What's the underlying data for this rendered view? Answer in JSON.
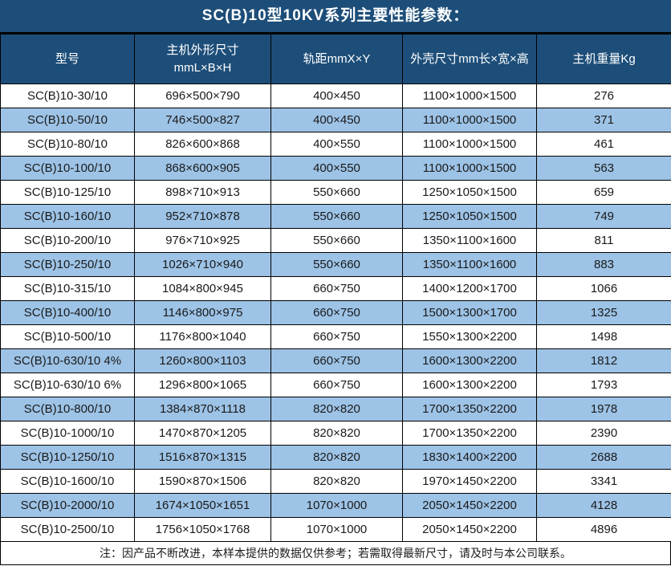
{
  "title": "SC(B)10型10KV系列主要性能参数：",
  "table": {
    "headers": {
      "model": "型号",
      "dims_line1": "主机外形尺寸",
      "dims_line2": "mmL×B×H",
      "rail": "轨距mmX×Y",
      "shell": "外壳尺寸mm长×宽×高",
      "weight": "主机重量Kg"
    },
    "rows": [
      [
        "SC(B)10-30/10",
        "696×500×790",
        "400×450",
        "1100×1000×1500",
        "276"
      ],
      [
        "SC(B)10-50/10",
        "746×500×827",
        "400×450",
        "1100×1000×1500",
        "371"
      ],
      [
        "SC(B)10-80/10",
        "826×600×868",
        "400×550",
        "1100×1000×1500",
        "461"
      ],
      [
        "SC(B)10-100/10",
        "868×600×905",
        "400×550",
        "1100×1000×1500",
        "563"
      ],
      [
        "SC(B)10-125/10",
        "898×710×913",
        "550×660",
        "1250×1050×1500",
        "659"
      ],
      [
        "SC(B)10-160/10",
        "952×710×878",
        "550×660",
        "1250×1050×1500",
        "749"
      ],
      [
        "SC(B)10-200/10",
        "976×710×925",
        "550×660",
        "1350×1100×1600",
        "811"
      ],
      [
        "SC(B)10-250/10",
        "1026×710×940",
        "550×660",
        "1350×1100×1600",
        "883"
      ],
      [
        "SC(B)10-315/10",
        "1084×800×945",
        "660×750",
        "1400×1200×1700",
        "1066"
      ],
      [
        "SC(B)10-400/10",
        "1146×800×975",
        "660×750",
        "1500×1300×1700",
        "1325"
      ],
      [
        "SC(B)10-500/10",
        "1176×800×1040",
        "660×750",
        "1550×1300×2200",
        "1498"
      ],
      [
        "SC(B)10-630/10 4%",
        "1260×800×1103",
        "660×750",
        "1600×1300×2200",
        "1812"
      ],
      [
        "SC(B)10-630/10 6%",
        "1296×800×1065",
        "660×750",
        "1600×1300×2200",
        "1793"
      ],
      [
        "SC(B)10-800/10",
        "1384×870×1118",
        "820×820",
        "1700×1350×2200",
        "1978"
      ],
      [
        "SC(B)10-1000/10",
        "1470×870×1205",
        "820×820",
        "1700×1350×2200",
        "2390"
      ],
      [
        "SC(B)10-1250/10",
        "1516×870×1315",
        "820×820",
        "1830×1400×2200",
        "2688"
      ],
      [
        "SC(B)10-1600/10",
        "1590×870×1506",
        "820×820",
        "1970×1450×2200",
        "3341"
      ],
      [
        "SC(B)10-2000/10",
        "1674×1050×1651",
        "1070×1000",
        "2050×1450×2200",
        "4128"
      ],
      [
        "SC(B)10-2500/10",
        "1756×1050×1768",
        "1070×1000",
        "2050×1450×2200",
        "4896"
      ]
    ]
  },
  "note": "注：因产品不断改进，本样本提供的数据仅供参考；若需取得最新尺寸，请及时与本公司联系。",
  "colors": {
    "header_bg": "#1D4E79",
    "header_text": "#FFFFFF",
    "row_bg": "#FFFFFF",
    "row_alt_bg": "#9DC3E6",
    "border": "#000000",
    "cell_text": "#1A1A1A"
  }
}
